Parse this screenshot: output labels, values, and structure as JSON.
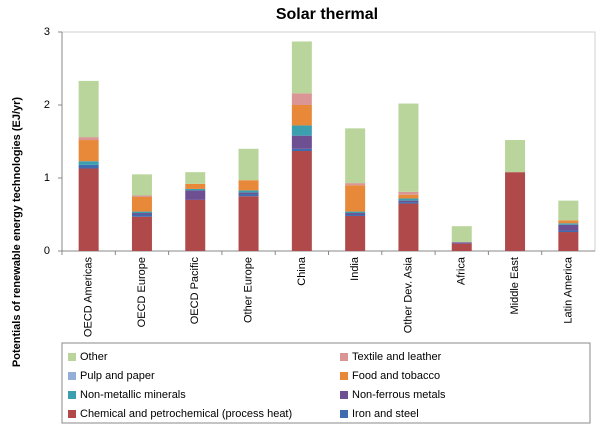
{
  "chart_data": {
    "type": "bar",
    "stacked": true,
    "title": "Solar thermal",
    "y_label": "Potentials of renewable energy technologies (EJ/yr)",
    "categories": [
      "OECD Americas",
      "OECD Europe",
      "OECD Pacific",
      "Other Europe",
      "China",
      "India",
      "Other Dev. Asia",
      "Africa",
      "Middle East",
      "Latin America"
    ],
    "ylim": [
      0,
      3
    ],
    "yticks": [
      0,
      1,
      2,
      3
    ],
    "grid": false,
    "legend": "bottom",
    "series": [
      {
        "name": "Chemical and petrochemical (process heat)",
        "color": "#b04a4a",
        "values": [
          1.13,
          0.47,
          0.7,
          0.75,
          1.37,
          0.48,
          0.65,
          0.1,
          1.08,
          0.26
        ]
      },
      {
        "name": "Iron and steel",
        "color": "#3f6cae",
        "values": [
          0.05,
          0.03,
          0,
          0.03,
          0.03,
          0.02,
          0.02,
          0,
          0,
          0.02
        ]
      },
      {
        "name": "Non-ferrous metals",
        "color": "#6e4f91",
        "values": [
          0,
          0.02,
          0.13,
          0.02,
          0.18,
          0.02,
          0.02,
          0.02,
          0,
          0.08
        ]
      },
      {
        "name": "Non-metallic minerals",
        "color": "#3c9fb0",
        "values": [
          0.05,
          0.02,
          0.02,
          0.03,
          0.14,
          0.02,
          0.03,
          0,
          0,
          0.02
        ]
      },
      {
        "name": "Food and tobacco",
        "color": "#e8893a",
        "values": [
          0.29,
          0.2,
          0.07,
          0.14,
          0.28,
          0.36,
          0.05,
          0,
          0,
          0.04
        ]
      },
      {
        "name": "Pulp and paper",
        "color": "#93afd8",
        "values": [
          0,
          0,
          0,
          0,
          0,
          0,
          0,
          0,
          0,
          0
        ]
      },
      {
        "name": "Textile and leather",
        "color": "#d99694",
        "values": [
          0.04,
          0.02,
          0,
          0,
          0.16,
          0.03,
          0.04,
          0,
          0,
          0
        ]
      },
      {
        "name": "Other",
        "color": "#b9d59b",
        "values": [
          0.77,
          0.29,
          0.16,
          0.43,
          0.71,
          0.75,
          1.21,
          0.22,
          0.44,
          0.27
        ]
      }
    ]
  }
}
